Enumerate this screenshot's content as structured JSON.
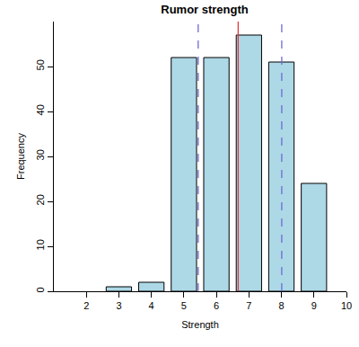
{
  "chart_data": {
    "type": "bar",
    "title": "Rumor strength",
    "x_label": "Strength",
    "y_label": "Frequency",
    "x": [
      3,
      4,
      5,
      6,
      7,
      8,
      9
    ],
    "values": [
      1,
      2,
      52,
      52,
      57,
      51,
      24
    ],
    "color": "#add8e6",
    "xlim": [
      1,
      10
    ],
    "xticks": [
      2,
      3,
      4,
      5,
      6,
      7,
      8,
      9,
      10
    ],
    "ylim": [
      0,
      60
    ],
    "yticks": [
      0,
      10,
      20,
      30,
      40,
      50
    ],
    "grid": false,
    "vlines": [
      {
        "x": 6.67,
        "color": "#e0393e",
        "line_style": "solid"
      },
      {
        "x": 5.44,
        "color": "#6b6bd6",
        "line_style": "dash"
      },
      {
        "x": 8.01,
        "color": "#6b6bd6",
        "line_style": "dash"
      }
    ]
  }
}
